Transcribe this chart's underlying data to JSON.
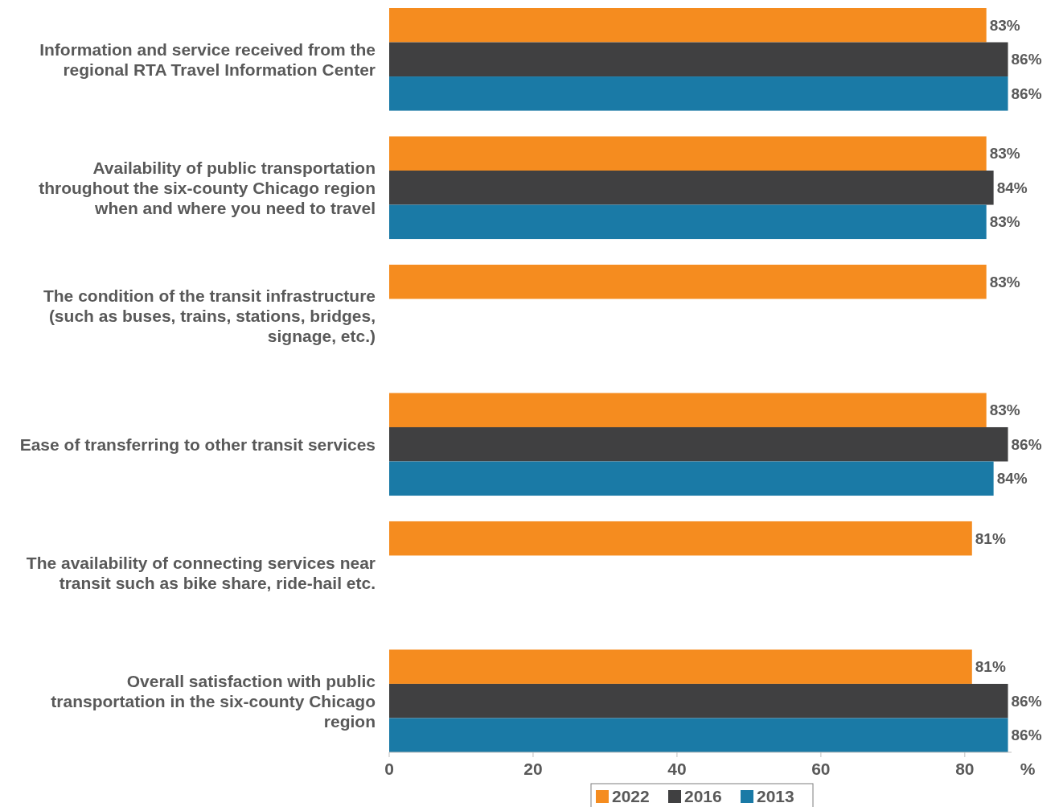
{
  "chart_data": {
    "type": "bar",
    "orientation": "horizontal",
    "xlabel": "%",
    "categories": [
      "Information and service received from the regional RTA Travel Information Center",
      "Availability of public transportation throughout the six-county Chicago region when and where you need to travel",
      "The condition of the transit infrastructure (such as buses, trains, stations, bridges, signage, etc.)",
      "Ease of transferring to other transit services",
      "The availability of connecting services near transit such as bike share, ride-hail etc.",
      "Overall satisfaction with public transportation in the six-county Chicago region"
    ],
    "series": [
      {
        "name": "2022",
        "color": "#f58c1f",
        "values": [
          83,
          83,
          83,
          83,
          81,
          81
        ],
        "value_labels": [
          "83%",
          "83%",
          "83%",
          "83%",
          "81%",
          "81%"
        ]
      },
      {
        "name": "2016",
        "color": "#404041",
        "values": [
          86,
          84,
          null,
          86,
          null,
          86
        ],
        "value_labels": [
          "86%",
          "84%",
          null,
          "86%",
          null,
          "86%"
        ]
      },
      {
        "name": "2013",
        "color": "#1a7aa6",
        "values": [
          86,
          83,
          null,
          84,
          null,
          86
        ],
        "value_labels": [
          "86%",
          "83%",
          null,
          "84%",
          null,
          "86%"
        ]
      }
    ],
    "xlim": [
      0,
      86.5
    ],
    "xticks": [
      0,
      20,
      40,
      60,
      80
    ],
    "grid": false,
    "legend": "bottom"
  }
}
